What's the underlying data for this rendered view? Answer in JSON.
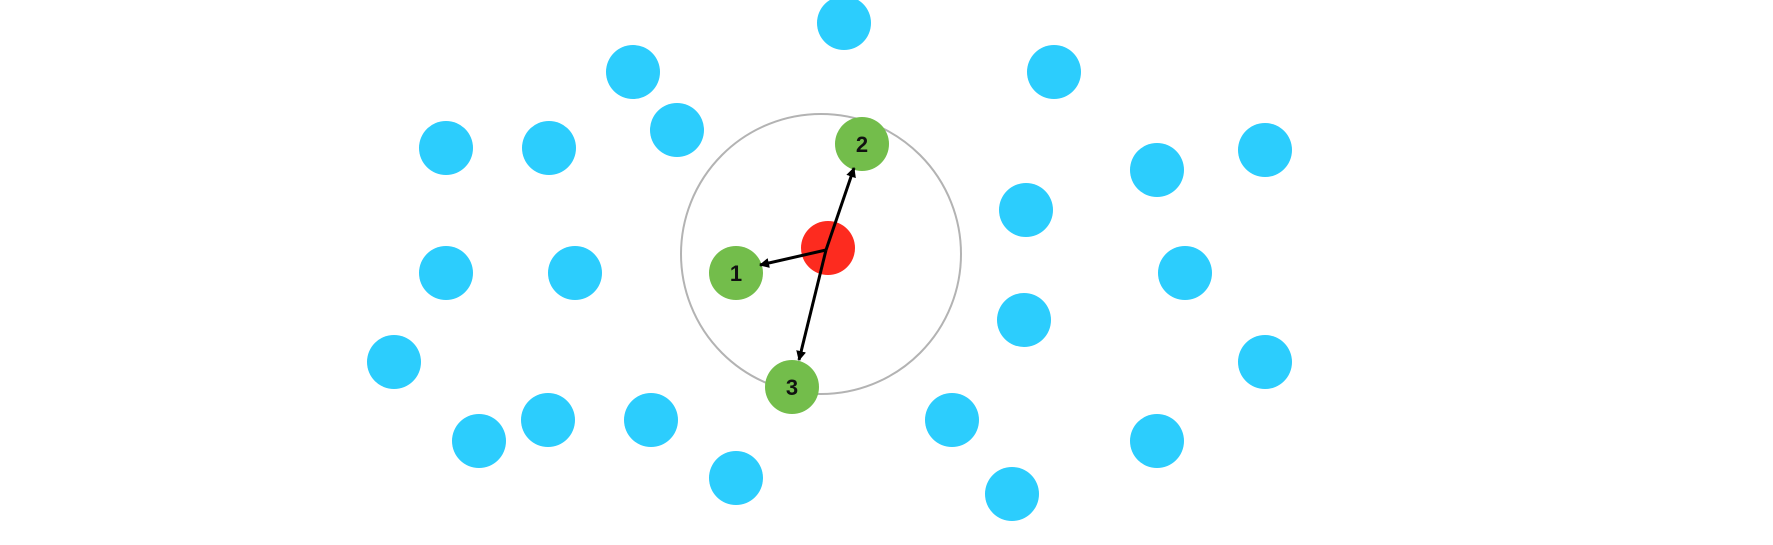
{
  "colors": {
    "background": "#ffffff",
    "other_point": "#2ccdfd",
    "query_point": "#fd2b1f",
    "neighbor_point": "#73bd4b",
    "radius_circle": "#b3b3b3",
    "arrow": "#000000",
    "label": "#111111"
  },
  "neighbors": [
    {
      "label": "1"
    },
    {
      "label": "2"
    },
    {
      "label": "3"
    }
  ]
}
